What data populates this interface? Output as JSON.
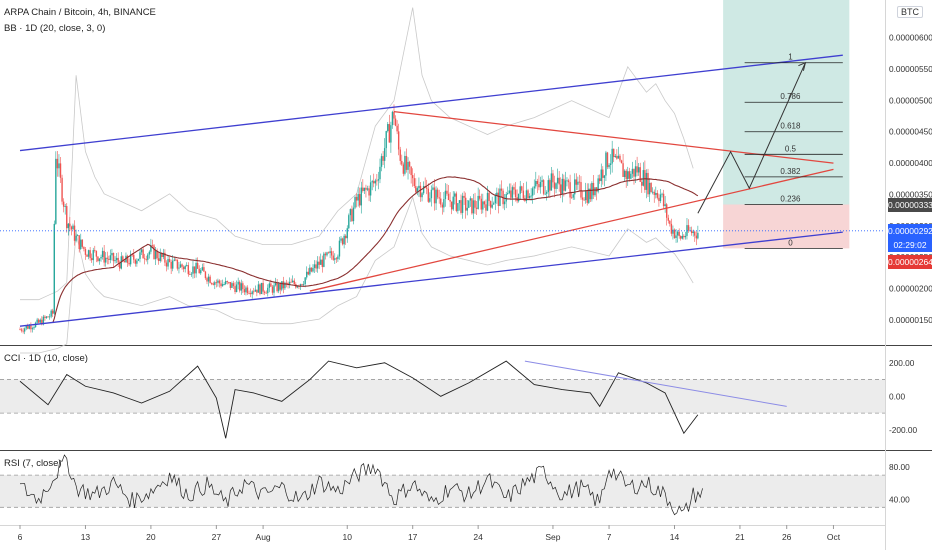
{
  "header": {
    "symbol_line": "ARPA Chain / Bitcoin, 4h, BINANCE",
    "bb_line": "BB · 1D (20, close, 3, 0)",
    "cci_line": "CCI · 1D (10, close)",
    "rsi_line": "RSI (7, close)",
    "currency_badge": "BTC"
  },
  "colors": {
    "candle_up": "#26a69a",
    "candle_down": "#ef5350",
    "channel": "#3f3fd0",
    "triangle": "#e2473f",
    "ma": "#8a2f2f",
    "target_zone": "#cfe9e4",
    "stop_zone": "#f7d5d5",
    "band": "#c9c9c9"
  },
  "price_badges": {
    "upper": "0.00000333",
    "current": "0.00000292",
    "countdown": "02:29:02",
    "lower": "0.00000264"
  },
  "chart_data": [
    {
      "type": "candlestick",
      "title": "ARPA Chain / Bitcoin, 4h, BINANCE",
      "x_axis_ticks": [
        "6",
        "13",
        "20",
        "27",
        "Aug",
        "10",
        "17",
        "24",
        "Sep",
        "7",
        "14",
        "21",
        "26",
        "Oct"
      ],
      "x_tick_days": [
        0,
        7,
        14,
        21,
        26,
        35,
        42,
        49,
        57,
        63,
        70,
        77,
        82,
        87
      ],
      "y_axis_ticks": [
        "0.00000150",
        "0.00000200",
        "0.00000250",
        "0.00000300",
        "0.00000350",
        "0.00000400",
        "0.00000450",
        "0.00000500",
        "0.00000550",
        "0.00000600"
      ],
      "ylim": [
        1.1e-06,
        6.6e-06
      ],
      "close_path_days": [
        0,
        2,
        3.5,
        3.8,
        4.2,
        5,
        6,
        7,
        9,
        11,
        14,
        16,
        19,
        21,
        24,
        27,
        30,
        32,
        34,
        36,
        38,
        40,
        40.5,
        41,
        42,
        44,
        46,
        48,
        50,
        53,
        55,
        57,
        59,
        61,
        63,
        65,
        66,
        67.5,
        68.5,
        69.5,
        70.5,
        71.5
      ],
      "close_path_values": [
        1.35e-06,
        1.45e-06,
        1.6e-06,
        4.2e-06,
        3.8e-06,
        3.1e-06,
        2.8e-06,
        2.6e-06,
        2.5e-06,
        2.4e-06,
        2.6e-06,
        2.4e-06,
        2.3e-06,
        2.1e-06,
        2e-06,
        2e-06,
        2.1e-06,
        2.4e-06,
        2.6e-06,
        3.4e-06,
        3.7e-06,
        4.8e-06,
        4.2e-06,
        4e-06,
        3.7e-06,
        3.5e-06,
        3.4e-06,
        3.3e-06,
        3.4e-06,
        3.5e-06,
        3.6e-06,
        3.7e-06,
        3.6e-06,
        3.5e-06,
        4.1e-06,
        3.8e-06,
        3.9e-06,
        3.6e-06,
        3.5e-06,
        3e-06,
        2.8e-06,
        2.9e-06
      ],
      "current_price": 2.92e-06,
      "annotations": {
        "fib_levels": [
          "1",
          "0.786",
          "0.618",
          "0.5",
          "0.382",
          "0.236",
          "0"
        ],
        "fib_values": [
          5.6e-06,
          4.97e-06,
          4.5e-06,
          4.14e-06,
          3.78e-06,
          3.34e-06,
          2.64e-06
        ],
        "channel_upper_days": [
          0,
          88
        ],
        "channel_upper_values": [
          4.2e-06,
          5.72e-06
        ],
        "channel_lower_days": [
          0,
          88
        ],
        "channel_lower_values": [
          1.4e-06,
          2.9e-06
        ],
        "triangle_top_days": [
          40,
          87
        ],
        "triangle_top_values": [
          4.82e-06,
          4e-06
        ],
        "triangle_bottom_days": [
          31,
          87
        ],
        "triangle_bottom_values": [
          1.96e-06,
          3.9e-06
        ],
        "projection_days": [
          72.5,
          76,
          78,
          84
        ],
        "projection_values": [
          3.2e-06,
          4.18e-06,
          3.6e-06,
          5.6e-06
        ]
      }
    },
    {
      "type": "line",
      "title": "CCI · 1D (10, close)",
      "y_axis_ticks": [
        "200.00",
        "0.00",
        "-200.00"
      ],
      "ylim": [
        -320,
        300
      ],
      "band": [
        -100,
        100
      ],
      "x_days": [
        0,
        3,
        5,
        7,
        10,
        13,
        16,
        19,
        21,
        22,
        23,
        25,
        28,
        31,
        33,
        36,
        39,
        42,
        45,
        48,
        52,
        55,
        58,
        61,
        62,
        64,
        67,
        69,
        71,
        72.5
      ],
      "values": [
        90,
        -50,
        130,
        60,
        20,
        -40,
        30,
        180,
        -10,
        -250,
        40,
        20,
        -30,
        100,
        210,
        170,
        200,
        110,
        0,
        80,
        210,
        70,
        40,
        20,
        -60,
        140,
        80,
        20,
        -220,
        -110
      ],
      "divergence_days": [
        54,
        82
      ],
      "divergence_values": [
        210,
        -60
      ]
    },
    {
      "type": "line",
      "title": "RSI (7, close)",
      "y_axis_ticks": [
        "80.00",
        "40.00"
      ],
      "ylim": [
        8,
        100
      ],
      "band": [
        30,
        70
      ],
      "x_days": [
        0,
        2,
        4,
        5,
        6,
        8,
        10,
        12,
        14,
        16,
        18,
        20,
        22,
        24,
        26,
        28,
        30,
        32,
        34,
        36,
        38,
        40,
        42,
        44,
        46,
        48,
        50,
        52,
        54,
        56,
        58,
        60,
        62,
        63,
        65,
        67,
        69,
        70,
        71,
        72,
        73
      ],
      "values": [
        55,
        40,
        75,
        90,
        55,
        45,
        60,
        38,
        50,
        70,
        45,
        58,
        35,
        60,
        45,
        55,
        38,
        62,
        50,
        70,
        82,
        40,
        60,
        35,
        55,
        45,
        65,
        40,
        60,
        75,
        45,
        55,
        35,
        80,
        55,
        60,
        45,
        30,
        20,
        45,
        48
      ]
    }
  ]
}
